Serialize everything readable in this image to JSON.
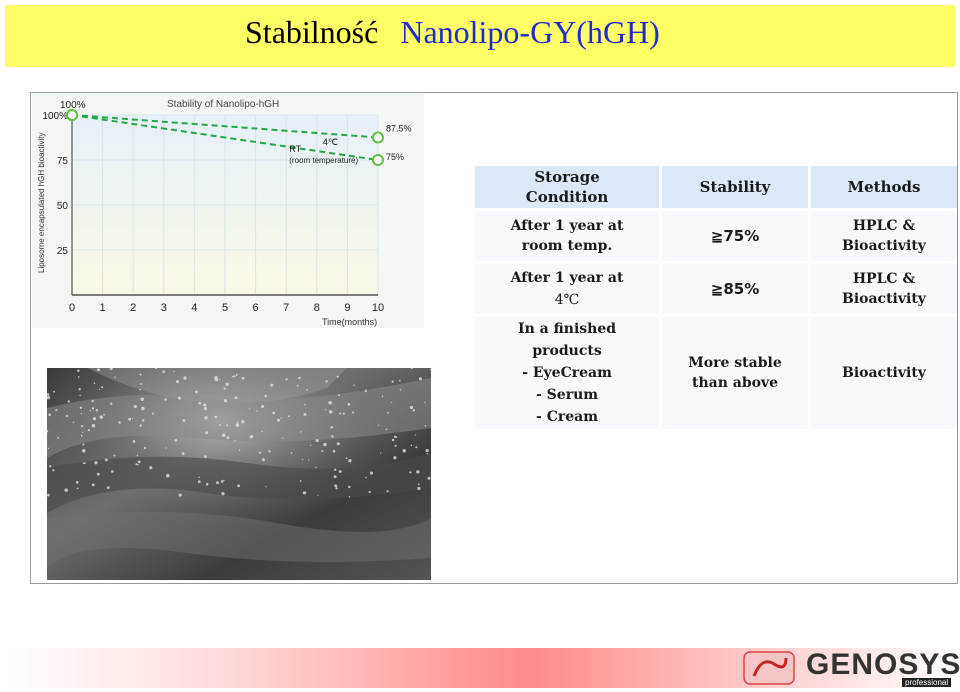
{
  "title": {
    "part1": "Stabilność",
    "part2": "Nanolipo-GY(hGH)"
  },
  "chart_data": {
    "type": "line",
    "title": "Stability of Nanolipo-hGH",
    "xlabel": "Time(months)",
    "ylabel": "Liposome encapsulated hGH bioactivity",
    "x": [
      0,
      10
    ],
    "xticks": [
      "0",
      "1",
      "2",
      "3",
      "4",
      "5",
      "6",
      "7",
      "8",
      "9",
      "10"
    ],
    "yticks": [
      "25",
      "50",
      "75",
      "100%"
    ],
    "xlim": [
      0,
      10
    ],
    "ylim": [
      0,
      100
    ],
    "grid": true,
    "series": [
      {
        "name": "4℃",
        "values": [
          100,
          87.5
        ],
        "end_label": "87.5%"
      },
      {
        "name": "RT",
        "sublabel": "(room temperature)",
        "values": [
          100,
          75
        ],
        "end_label": "75%"
      }
    ],
    "colors": {
      "line": "#22a844",
      "marker": "#5fbf3f",
      "grid": "#d8e4ec"
    }
  },
  "table": {
    "headers": [
      "Storage Condition",
      "Stability",
      "Methods"
    ],
    "rows": [
      {
        "condition": [
          "After 1 year at",
          "room temp."
        ],
        "stability": "≧75%",
        "methods": [
          "HPLC &",
          "Bioactivity"
        ]
      },
      {
        "condition": [
          "After 1 year at",
          "4℃"
        ],
        "stability": "≧85%",
        "methods": [
          "HPLC &",
          "Bioactivity"
        ]
      },
      {
        "condition": [
          "In a finished",
          "products",
          "- EyeCream",
          "- Serum",
          "- Cream"
        ],
        "stability": [
          "More stable",
          "than above"
        ],
        "methods": [
          "Bioactivity"
        ]
      }
    ]
  },
  "logo": {
    "text": "GENOSYS",
    "sub": "professional"
  },
  "colors": {
    "title_bg": "#ffff66",
    "title_accent": "#1f2bd0",
    "header_bg": "#dde8f6"
  }
}
